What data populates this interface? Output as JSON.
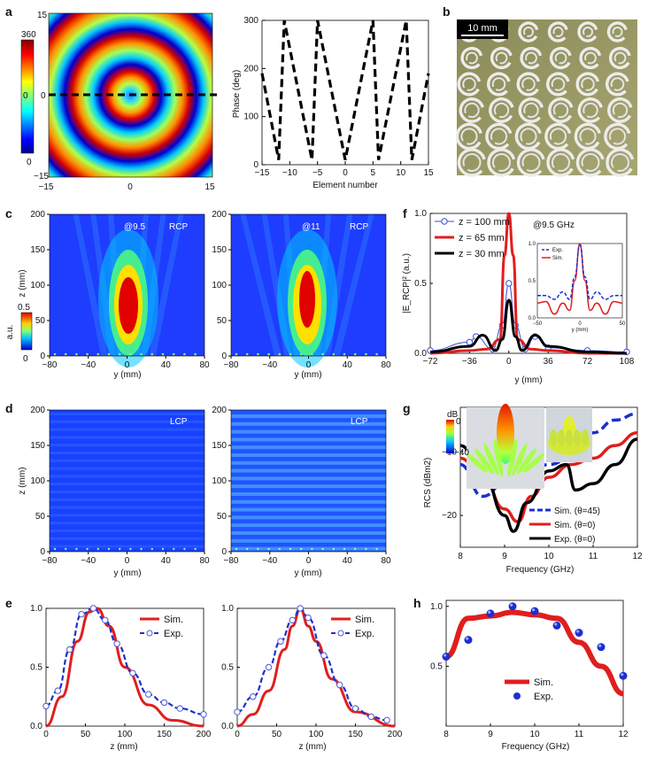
{
  "panel_labels": {
    "a": "a",
    "b": "b",
    "c": "c",
    "d": "d",
    "e": "e",
    "f": "f",
    "g": "g",
    "h": "h"
  },
  "a": {
    "colorbar_max": "360",
    "colorbar_mid": "0",
    "colorbar_min": "0",
    "map_yticks": [
      "15",
      "0",
      "−15"
    ],
    "map_xticks": [
      "−15",
      "0",
      "15"
    ],
    "phase_chart": {
      "ylabel": "Phase (deg)",
      "xlabel": "Element number",
      "yticks": [
        "0",
        "100",
        "200",
        "300"
      ],
      "xticks": [
        "−15",
        "−10",
        "−5",
        "0",
        "5",
        "10",
        "15"
      ]
    }
  },
  "b": {
    "scalebar": "10 mm"
  },
  "c": {
    "left_tag": "@9.5",
    "left_pol": "RCP",
    "right_tag": "@11",
    "right_pol": "RCP",
    "colorbar_label": "a.u.",
    "colorbar_max": "0.5",
    "colorbar_min": "0",
    "ylabel": "z (mm)",
    "xlabel": "y (mm)",
    "yticks": [
      "0",
      "50",
      "100",
      "150",
      "200"
    ],
    "xticks": [
      "−80",
      "−40",
      "0",
      "40",
      "80"
    ]
  },
  "d": {
    "left_pol": "LCP",
    "right_pol": "LCP",
    "ylabel": "z (mm)",
    "xlabel": "y (mm)",
    "yticks": [
      "0",
      "50",
      "100",
      "150",
      "200"
    ],
    "xticks": [
      "−80",
      "−40",
      "0",
      "40",
      "80"
    ]
  },
  "e": {
    "xlabel": "z (mm)",
    "legend_sim": "Sim.",
    "legend_exp": "Exp.",
    "yticks": [
      "0.0",
      "0.5",
      "1.0"
    ],
    "xticks": [
      "0",
      "50",
      "100",
      "150",
      "200"
    ]
  },
  "f": {
    "ylabel": "|E_RCP|² (a.u.)",
    "xlabel": "y (mm)",
    "freq_note": "@9.5 GHz",
    "legend": [
      "z = 100 mm",
      "z = 65 mm",
      "z = 30 mm"
    ],
    "yticks": [
      "0.0",
      "0.5",
      "1.0"
    ],
    "xticks": [
      "−72",
      "−36",
      "0",
      "36",
      "72",
      "108"
    ],
    "inset": {
      "legend_exp": "Exp.",
      "legend_sim": "Sim.",
      "xlabel": "y (mm)",
      "yticks": [
        "0.0",
        "0.5",
        "1.0"
      ],
      "xticks": [
        "−50",
        "0",
        "50"
      ]
    }
  },
  "g": {
    "ylabel": "RCS (dBm2)",
    "xlabel": "Frequency (GHz)",
    "colorbar_unit": "dB",
    "colorbar_max": "0",
    "colorbar_min": "−40",
    "legend": [
      "Sim. (θ=45)",
      "Sim. (θ=0)",
      "Exp. (θ=0)"
    ],
    "yticks": [
      "−20",
      "−10"
    ],
    "xticks": [
      "8",
      "9",
      "10",
      "11",
      "12"
    ]
  },
  "h": {
    "xlabel": "Frequency (GHz)",
    "legend_sim": "Sim.",
    "legend_exp": "Exp.",
    "yticks": [
      "0.5",
      "1.0"
    ],
    "xticks": [
      "8",
      "9",
      "10",
      "11",
      "12"
    ]
  },
  "colors": {
    "sim": "#e01e1e",
    "exp": "#1c2fcf",
    "black": "#000000"
  },
  "chart_data": [
    {
      "type": "heatmap",
      "title": "",
      "description_values": "concentric phase rings 0-360 deg",
      "xlim": [
        -15,
        15
      ],
      "ylim": [
        -15,
        15
      ]
    },
    {
      "type": "line",
      "xlabel": "Element number",
      "ylabel": "Phase (deg)",
      "xlim": [
        -15,
        15
      ],
      "ylim": [
        0,
        300
      ],
      "series": [
        {
          "name": "",
          "x": [
            -15,
            -12,
            -11,
            -6,
            -5,
            0,
            5,
            6,
            11,
            12,
            15
          ],
          "y": [
            190,
            10,
            300,
            10,
            300,
            10,
            300,
            10,
            300,
            10,
            190
          ]
        }
      ]
    },
    {
      "type": "line",
      "xlabel": "z (mm)",
      "xlim": [
        0,
        200
      ],
      "ylim": [
        0,
        1
      ],
      "series": [
        {
          "name": "Sim.",
          "x": [
            0,
            20,
            40,
            55,
            65,
            80,
            100,
            130,
            160,
            200
          ],
          "y": [
            0,
            0.25,
            0.72,
            0.97,
            1.0,
            0.85,
            0.5,
            0.18,
            0.05,
            0
          ]
        },
        {
          "name": "Exp.",
          "x": [
            0,
            15,
            30,
            45,
            60,
            75,
            90,
            110,
            130,
            150,
            170,
            200
          ],
          "y": [
            0.17,
            0.3,
            0.65,
            0.95,
            1.0,
            0.9,
            0.7,
            0.45,
            0.27,
            0.2,
            0.15,
            0.1
          ]
        }
      ]
    },
    {
      "type": "line",
      "xlabel": "z (mm)",
      "xlim": [
        0,
        200
      ],
      "ylim": [
        0,
        1
      ],
      "series": [
        {
          "name": "Sim.",
          "x": [
            0,
            20,
            40,
            60,
            70,
            80,
            90,
            100,
            120,
            150,
            200
          ],
          "y": [
            0,
            0.1,
            0.3,
            0.65,
            0.85,
            1.0,
            0.85,
            0.72,
            0.4,
            0.12,
            0
          ]
        },
        {
          "name": "Exp.",
          "x": [
            0,
            20,
            40,
            55,
            70,
            80,
            90,
            110,
            130,
            150,
            170,
            190
          ],
          "y": [
            0.12,
            0.25,
            0.5,
            0.72,
            0.9,
            1.0,
            0.92,
            0.6,
            0.35,
            0.15,
            0.08,
            0.05
          ]
        }
      ]
    },
    {
      "type": "line",
      "xlabel": "y (mm)",
      "ylabel": "|E_RCP|² (a.u.)",
      "xlim": [
        -72,
        108
      ],
      "ylim": [
        0,
        1
      ],
      "series": [
        {
          "name": "z = 100 mm",
          "x": [
            -72,
            -36,
            -30,
            -15,
            -6,
            0,
            6,
            15,
            24,
            36,
            72,
            108
          ],
          "y": [
            0.02,
            0.08,
            0.12,
            0.03,
            0.2,
            0.5,
            0.2,
            0.03,
            0.12,
            0.04,
            0.02,
            0.01
          ]
        },
        {
          "name": "z = 65 mm",
          "x": [
            -72,
            -36,
            -20,
            -8,
            -4,
            0,
            4,
            8,
            20,
            36,
            72,
            108
          ],
          "y": [
            0,
            0.02,
            0.03,
            0.1,
            0.7,
            1.0,
            0.7,
            0.1,
            0.03,
            0.02,
            0,
            0
          ]
        },
        {
          "name": "z = 30 mm",
          "x": [
            -72,
            -36,
            -24,
            -12,
            -6,
            0,
            6,
            12,
            24,
            36,
            72,
            108
          ],
          "y": [
            0.01,
            0.05,
            0.13,
            0.02,
            0.1,
            0.38,
            0.12,
            0.02,
            0.13,
            0.05,
            0.01,
            0
          ]
        }
      ]
    },
    {
      "type": "line",
      "xlabel": "Frequency (GHz)",
      "ylabel": "RCS (dBm2)",
      "xlim": [
        8,
        12
      ],
      "ylim": [
        -25,
        -3
      ],
      "series": [
        {
          "name": "Sim. (θ=45)",
          "x": [
            8,
            8.5,
            9,
            9.5,
            10,
            10.5,
            11,
            11.5,
            12
          ],
          "y": [
            -12,
            -17,
            -15,
            -13,
            -12,
            -11,
            -7,
            -5,
            -4
          ]
        },
        {
          "name": "Sim. (θ=0)",
          "x": [
            8,
            8.5,
            9,
            9.3,
            9.6,
            10,
            10.5,
            11,
            11.5,
            12
          ],
          "y": [
            -11,
            -14,
            -19,
            -21,
            -17,
            -14,
            -12,
            -11,
            -9,
            -7
          ]
        },
        {
          "name": "Exp. (θ=0)",
          "x": [
            8,
            8.5,
            9,
            9.2,
            9.5,
            10,
            10.4,
            10.6,
            11,
            11.5,
            12
          ],
          "y": [
            -9,
            -13,
            -20,
            -22.5,
            -18,
            -13,
            -12,
            -16,
            -15,
            -12,
            -8
          ]
        }
      ]
    },
    {
      "type": "line",
      "xlabel": "Frequency (GHz)",
      "xlim": [
        8,
        12
      ],
      "ylim": [
        0,
        1.05
      ],
      "series": [
        {
          "name": "Sim.",
          "x": [
            8,
            8.5,
            9,
            9.5,
            10,
            10.5,
            11,
            11.5,
            12
          ],
          "y": [
            0.58,
            0.9,
            0.92,
            0.95,
            0.93,
            0.9,
            0.7,
            0.5,
            0.27
          ]
        },
        {
          "name": "Exp.",
          "x": [
            8,
            8.5,
            9,
            9.5,
            10,
            10.5,
            11,
            11.5,
            12
          ],
          "y": [
            0.58,
            0.72,
            0.94,
            1.0,
            0.96,
            0.84,
            0.78,
            0.66,
            0.42
          ]
        }
      ]
    }
  ]
}
